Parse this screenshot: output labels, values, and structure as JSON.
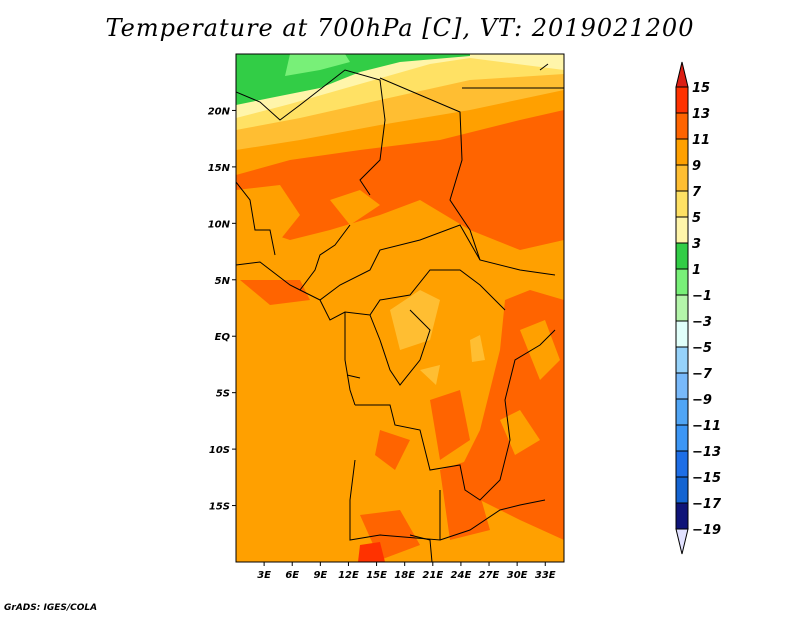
{
  "title": "Temperature at 700hPa [C], VT: 2019021200",
  "footer": "GrADS: IGES/COLA",
  "map": {
    "lon_range": [
      0,
      35
    ],
    "lat_range": [
      -20,
      25
    ],
    "lat_ticks": [
      {
        "v": 20,
        "label": "20N"
      },
      {
        "v": 15,
        "label": "15N"
      },
      {
        "v": 10,
        "label": "10N"
      },
      {
        "v": 5,
        "label": "5N"
      },
      {
        "v": 0,
        "label": "EQ"
      },
      {
        "v": -5,
        "label": "5S"
      },
      {
        "v": -10,
        "label": "10S"
      },
      {
        "v": -15,
        "label": "15S"
      }
    ],
    "lon_ticks": [
      {
        "v": 3,
        "label": "3E"
      },
      {
        "v": 6,
        "label": "6E"
      },
      {
        "v": 9,
        "label": "9E"
      },
      {
        "v": 12,
        "label": "12E"
      },
      {
        "v": 15,
        "label": "15E"
      },
      {
        "v": 18,
        "label": "18E"
      },
      {
        "v": 21,
        "label": "21E"
      },
      {
        "v": 24,
        "label": "24E"
      },
      {
        "v": 27,
        "label": "27E"
      },
      {
        "v": 30,
        "label": "30E"
      },
      {
        "v": 33,
        "label": "33E"
      }
    ]
  },
  "colorbar": {
    "labels": [
      "15",
      "13",
      "11",
      "9",
      "7",
      "5",
      "3",
      "1",
      "−1",
      "−3",
      "−5",
      "−7",
      "−9",
      "−11",
      "−13",
      "−15",
      "−17",
      "−19"
    ],
    "over_color": "#dc1e14",
    "under_color": "#e1e1ff",
    "colors": [
      "#ff3200",
      "#ff6400",
      "#ffa000",
      "#ffbe32",
      "#ffe164",
      "#fff5aa",
      "#32cd46",
      "#78f078",
      "#b4f5aa",
      "#e1fffa",
      "#96d2fa",
      "#78b9fa",
      "#50a5f5",
      "#3c96f5",
      "#1e6ee6",
      "#1464d2",
      "#0f1478"
    ]
  }
}
